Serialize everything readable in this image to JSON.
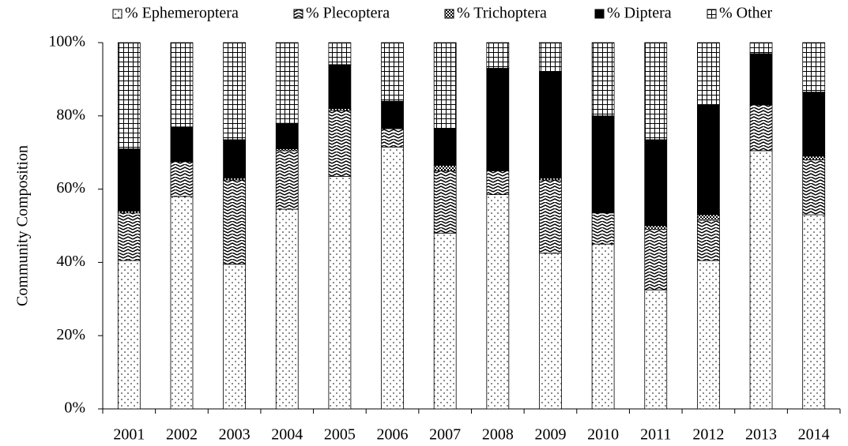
{
  "chart_data": {
    "type": "stacked_bar",
    "y_label": "Community Composition",
    "categories": [
      "2001",
      "2002",
      "2003",
      "2004",
      "2005",
      "2006",
      "2007",
      "2008",
      "2009",
      "2010",
      "2011",
      "2012",
      "2013",
      "2014"
    ],
    "series": [
      {
        "name": "% Ephemeroptera",
        "pattern": "dots",
        "values": [
          40.5,
          58,
          39.5,
          54.5,
          63.5,
          71.5,
          48,
          58.5,
          42.5,
          45,
          32.5,
          40.5,
          70.5,
          53
        ]
      },
      {
        "name": "% Plecoptera",
        "pattern": "waves",
        "values": [
          13,
          9.5,
          23,
          16,
          18,
          5,
          17,
          6.5,
          20,
          8.5,
          16.5,
          11,
          12.5,
          15
        ]
      },
      {
        "name": "% Trichoptera",
        "pattern": "checks",
        "values": [
          0.5,
          0,
          0.5,
          0.5,
          0.5,
          0,
          1.5,
          0,
          0.5,
          0,
          1,
          1.5,
          0,
          1
        ]
      },
      {
        "name": "% Diptera",
        "pattern": "solid",
        "values": [
          17,
          9.5,
          10.5,
          7,
          12,
          7.5,
          10,
          28,
          29,
          26.5,
          23.5,
          30,
          14,
          17.5
        ]
      },
      {
        "name": "% Other",
        "pattern": "grid",
        "values": [
          29,
          23,
          26.5,
          22,
          6,
          16,
          23.5,
          7,
          8,
          20,
          26.5,
          17,
          3,
          13.5
        ]
      }
    ],
    "ylim": [
      0,
      100
    ],
    "yticks": [
      {
        "value": 0,
        "label": "0%"
      },
      {
        "value": 20,
        "label": "20%"
      },
      {
        "value": 40,
        "label": "40%"
      },
      {
        "value": 60,
        "label": "60%"
      },
      {
        "value": 80,
        "label": "80%"
      },
      {
        "value": 100,
        "label": "100%"
      }
    ],
    "legend": "top"
  }
}
